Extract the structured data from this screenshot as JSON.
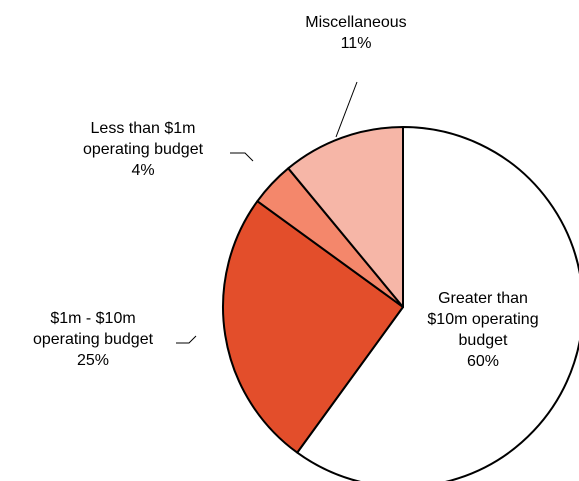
{
  "chart_data": {
    "type": "pie",
    "slices": [
      {
        "label_lines": [
          "Greater than",
          "$10m operating",
          "budget"
        ],
        "value": 60,
        "value_label": "60%",
        "color": "#ffffff"
      },
      {
        "label_lines": [
          "$1m - $10m",
          "operating budget"
        ],
        "value": 25,
        "value_label": "25%",
        "color": "#e34e2b"
      },
      {
        "label_lines": [
          "Less than $1m",
          "operating budget"
        ],
        "value": 4,
        "value_label": "4%",
        "color": "#f4876b"
      },
      {
        "label_lines": [
          "Miscellaneous"
        ],
        "value": 11,
        "value_label": "11%",
        "color": "#f6b6a7"
      }
    ]
  }
}
